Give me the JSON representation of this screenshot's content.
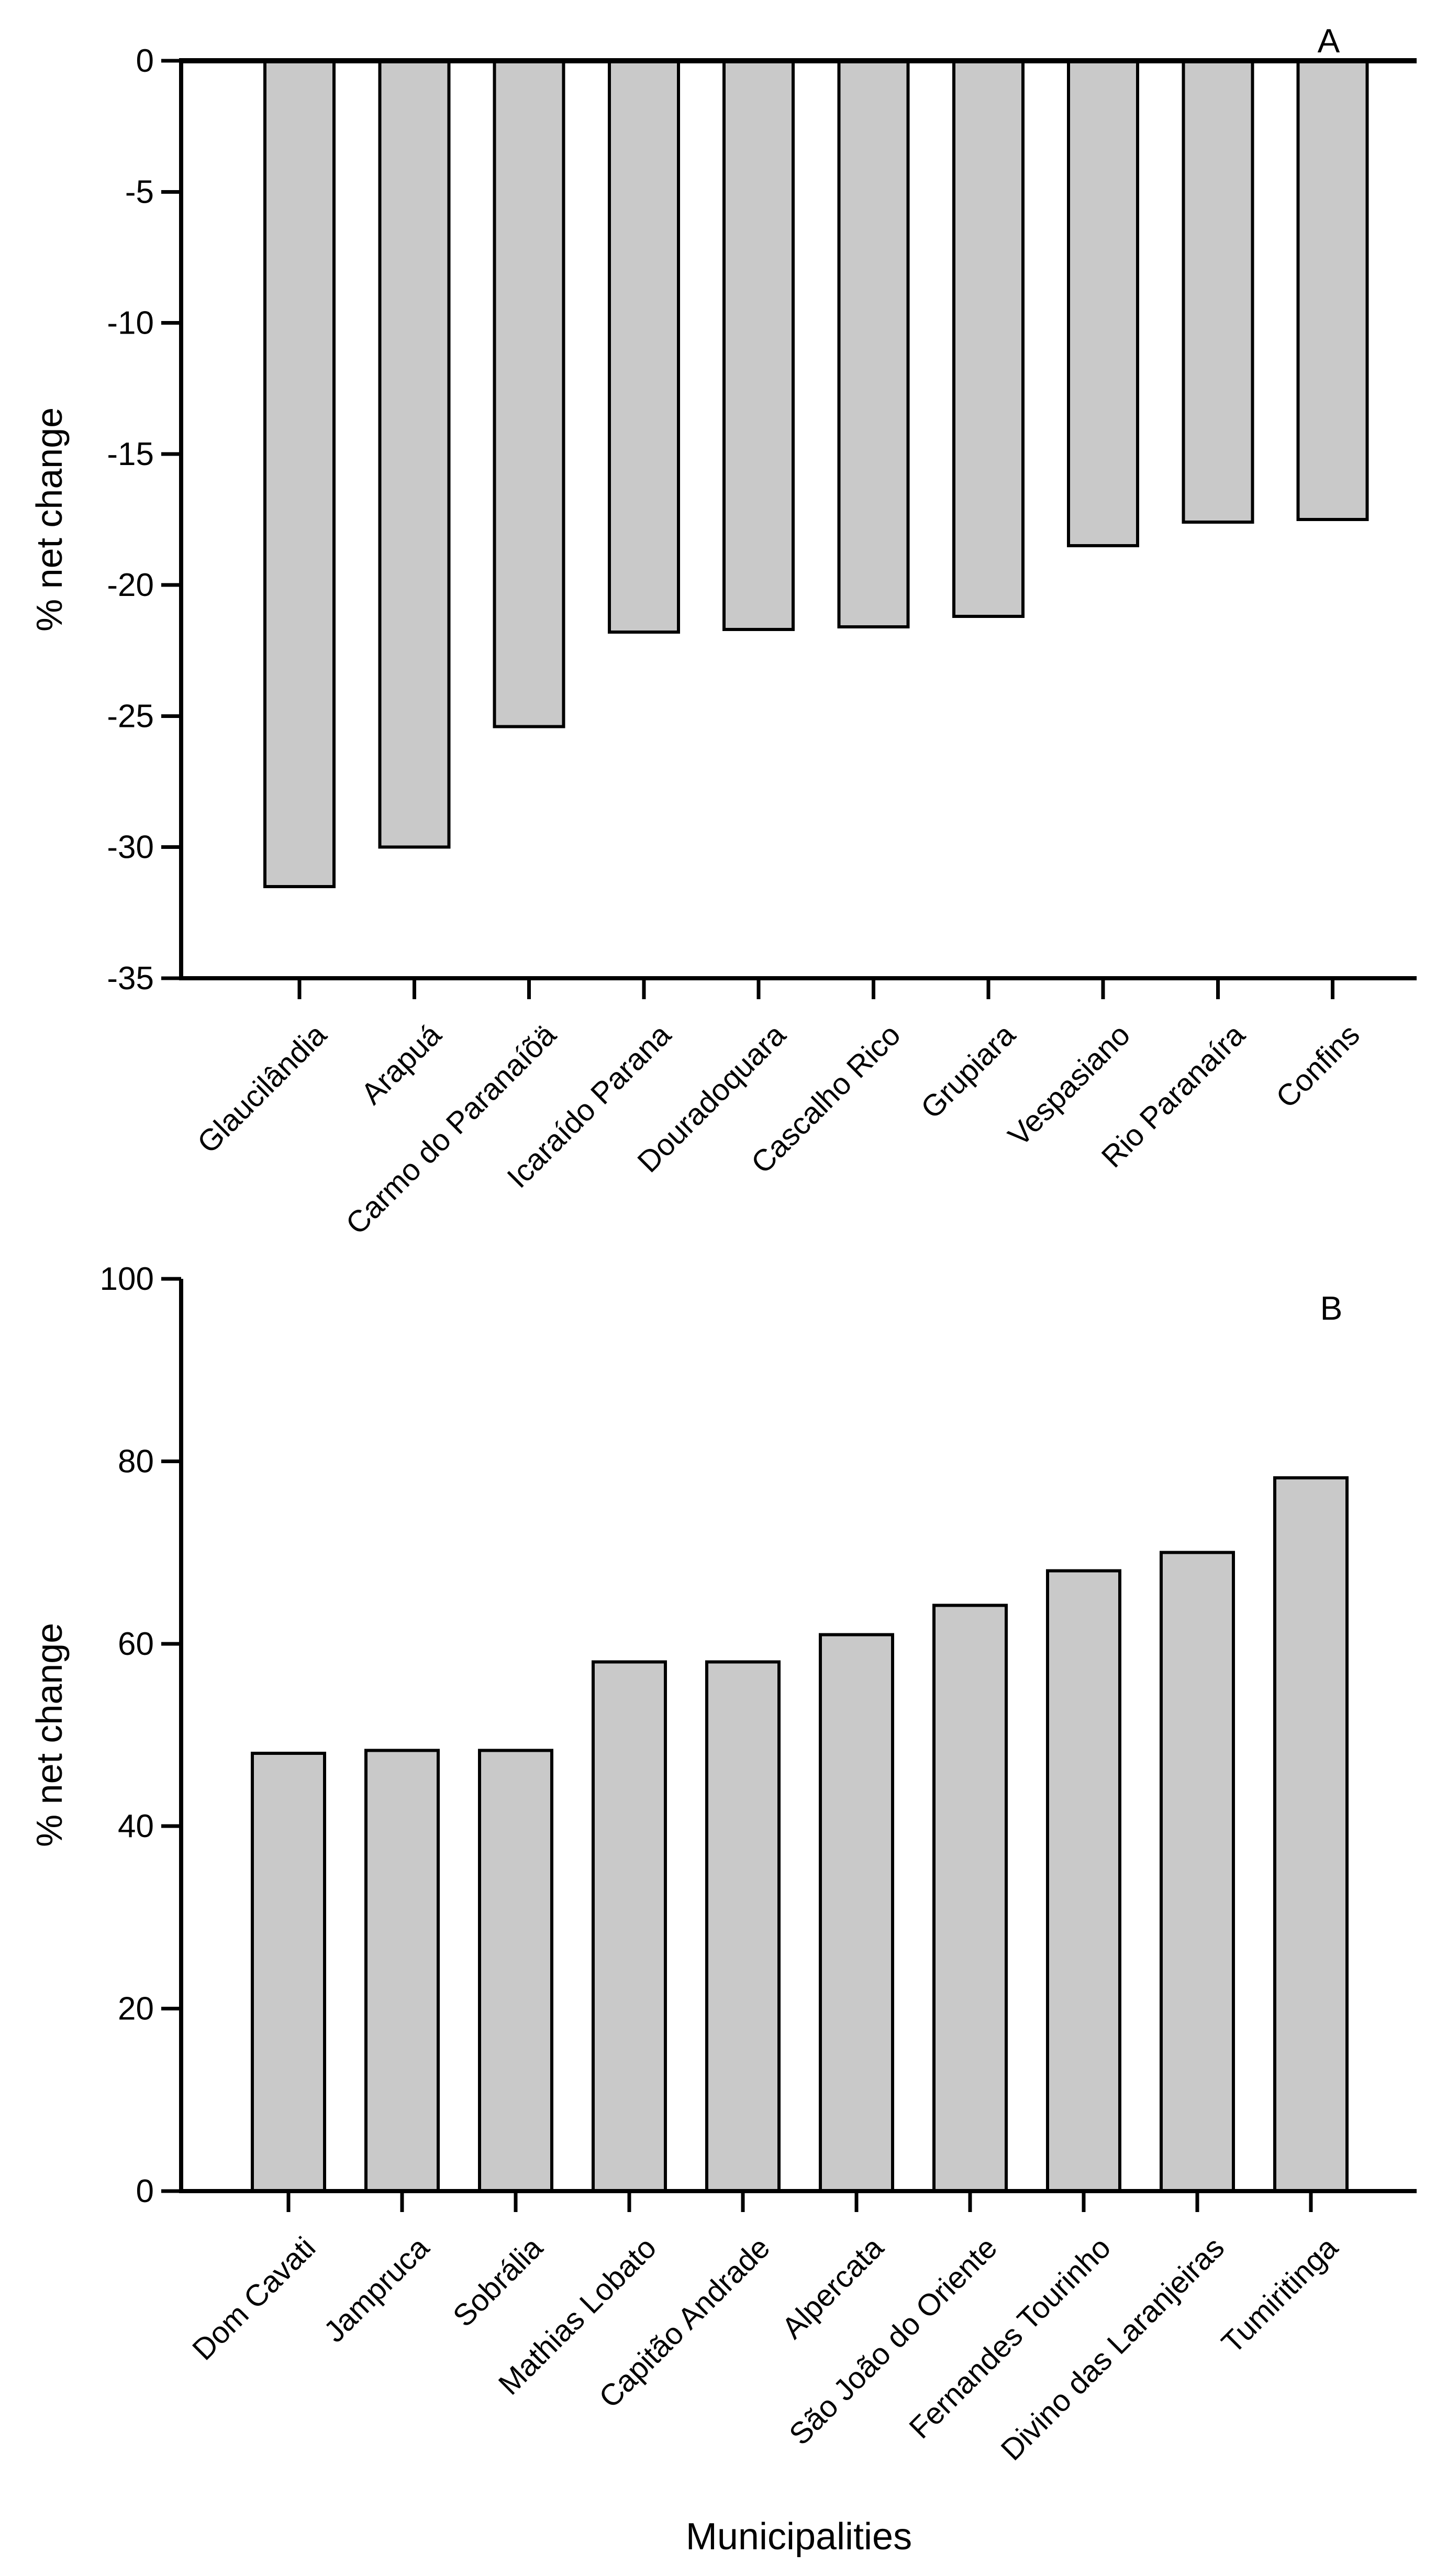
{
  "figure": {
    "background": "#ffffff",
    "xlabel": "Municipalities"
  },
  "chart_data": [
    {
      "type": "bar",
      "panel_label": "A",
      "title": "",
      "ylabel": "% net change",
      "xlabel": "",
      "ylim": [
        -35,
        0
      ],
      "yticks": [
        0,
        -5,
        -10,
        -15,
        -20,
        -25,
        -30,
        -35
      ],
      "grid": false,
      "legend": "none",
      "bar_fill": "#c9c9c9",
      "bar_stroke": "#000000",
      "categories": [
        "Glaucilândia",
        "Arapuá",
        "Carmo do Paranaíõä",
        "Icaraído Parana",
        "Douradoquara",
        "Cascalho Rico",
        "Grupiara",
        "Vespasiano",
        "Rio Paranaíra",
        "Confins"
      ],
      "values": [
        -31.5,
        -30,
        -25.4,
        -21.8,
        -21.7,
        -21.6,
        -21.2,
        -18.5,
        -17.6,
        -17.5
      ]
    },
    {
      "type": "bar",
      "panel_label": "B",
      "title": "",
      "ylabel": "% net change",
      "xlabel": "Municipalities",
      "ylim": [
        0,
        100
      ],
      "yticks": [
        100,
        80,
        60,
        40,
        20,
        0
      ],
      "grid": false,
      "legend": "none",
      "bar_fill": "#c9c9c9",
      "bar_stroke": "#000000",
      "categories": [
        "Dom Cavati",
        "Jampruca",
        "Sobrália",
        "Mathias Lobato",
        "Capitão Andrade",
        "Alpercata",
        "São João do Oriente",
        "Fernandes Tourinho",
        "Divino das Laranjeiras",
        "Tumiritinga"
      ],
      "values": [
        48,
        48.3,
        48.3,
        58,
        58,
        61,
        64.2,
        68,
        70,
        78.2
      ]
    }
  ]
}
